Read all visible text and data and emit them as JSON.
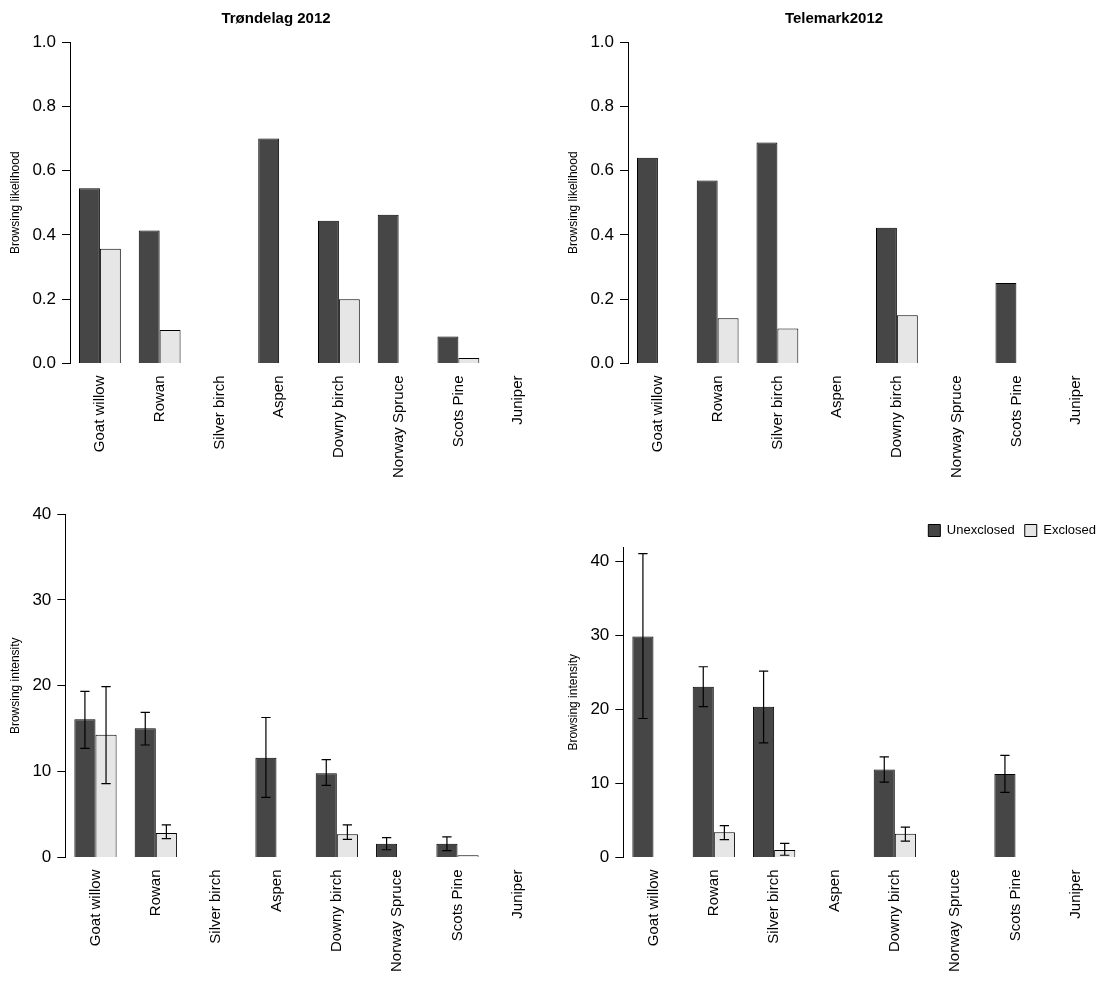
{
  "chart_data": [
    {
      "type": "bar",
      "title": "Trøndelag 2012",
      "ylabel": "Browsing likelihood",
      "categories": [
        "Goat willow",
        "Rowan",
        "Silver birch",
        "Aspen",
        "Downy birch",
        "Norway Spruce",
        "Scots Pine",
        "Juniper"
      ],
      "series": [
        {
          "color": "#464646",
          "values": [
            0.545,
            0.414,
            null,
            0.7,
            0.444,
            0.463,
            0.084,
            0
          ]
        },
        {
          "color": "#e6e6e6",
          "values": [
            0.357,
            0.104,
            null,
            null,
            0.2,
            0,
            0.017,
            null
          ]
        }
      ],
      "ylim": [
        0,
        1
      ],
      "yticks": [
        {
          "value": 0,
          "label": "0.0"
        },
        {
          "value": 0.2,
          "label": "0.2"
        },
        {
          "value": 0.4,
          "label": "0.4"
        },
        {
          "value": 0.6,
          "label": "0.6"
        },
        {
          "value": 0.8,
          "label": "0.8"
        },
        {
          "value": 1,
          "label": "1.0"
        }
      ],
      "grid": false,
      "legend": false
    },
    {
      "type": "bar",
      "title": "Telemark2012",
      "ylabel": "Browsing likelihood",
      "categories": [
        "Goat willow",
        "Rowan",
        "Silver birch",
        "Aspen",
        "Downy birch",
        "Norway Spruce",
        "Scots Pine",
        "Juniper"
      ],
      "series": [
        {
          "color": "#464646",
          "values": [
            0.64,
            0.569,
            0.687,
            null,
            0.422,
            null,
            0.25,
            null
          ]
        },
        {
          "color": "#e6e6e6",
          "values": [
            0,
            0.141,
            0.109,
            null,
            0.15,
            0,
            0,
            null
          ]
        }
      ],
      "ylim": [
        0,
        1
      ],
      "yticks": [
        {
          "value": 0,
          "label": "0.0"
        },
        {
          "value": 0.2,
          "label": "0.2"
        },
        {
          "value": 0.4,
          "label": "0.4"
        },
        {
          "value": 0.6,
          "label": "0.6"
        },
        {
          "value": 0.8,
          "label": "0.8"
        },
        {
          "value": 1,
          "label": "1.0"
        }
      ],
      "grid": false,
      "legend": false
    },
    {
      "type": "bar",
      "ylabel": "Browsing intensity",
      "categories": [
        "Goat willow",
        "Rowan",
        "Silver birch",
        "Aspen",
        "Downy birch",
        "Norway Spruce",
        "Scots Pine",
        "Juniper"
      ],
      "series": [
        {
          "color": "#464646",
          "values": [
            16.1,
            15.05,
            null,
            11.6,
            9.8,
            1.6,
            1.6,
            0
          ],
          "errors": [
            [
              12.7,
              19.35
            ],
            [
              13.1,
              16.9
            ],
            null,
            [
              7.0,
              16.3
            ],
            [
              8.4,
              11.4
            ],
            [
              0.9,
              2.3
            ],
            [
              0.8,
              2.4
            ],
            null
          ]
        },
        {
          "color": "#e6e6e6",
          "values": [
            14.3,
            2.85,
            null,
            null,
            2.7,
            0,
            0.26,
            null
          ],
          "errors": [
            [
              8.6,
              19.9
            ],
            [
              2.2,
              3.8
            ],
            null,
            null,
            [
              2.1,
              3.8
            ],
            null,
            null,
            null
          ]
        }
      ],
      "ylim": [
        0,
        40
      ],
      "yticks": [
        0,
        10,
        20,
        30,
        40
      ],
      "grid": false,
      "legend": false
    },
    {
      "type": "bar",
      "ylabel": "Browsing intensity",
      "categories": [
        "Goat willow",
        "Rowan",
        "Silver birch",
        "Aspen",
        "Downy birch",
        "Norway Spruce",
        "Scots Pine",
        "Juniper"
      ],
      "series": [
        {
          "name": "Unexclosed",
          "color": "#464646",
          "values": [
            29.9,
            23.1,
            20.4,
            null,
            11.9,
            null,
            11.3,
            null
          ],
          "errors": [
            [
              18.8,
              41.1
            ],
            [
              20.4,
              25.8
            ],
            [
              15.5,
              25.2
            ],
            null,
            [
              10.2,
              13.6
            ],
            null,
            [
              8.8,
              13.8
            ],
            null
          ]
        },
        {
          "name": "Exclosed",
          "color": "#e6e6e6",
          "values": [
            0,
            3.4,
            1.0,
            null,
            3.2,
            0,
            0,
            null
          ],
          "errors": [
            null,
            [
              2.4,
              4.3
            ],
            [
              0.3,
              1.9
            ],
            null,
            [
              2.2,
              4.1
            ],
            null,
            null,
            null
          ]
        }
      ],
      "ylim": [
        0,
        42
      ],
      "yticks": [
        0,
        10,
        20,
        30,
        40
      ],
      "grid": false,
      "legend": "top right"
    }
  ]
}
